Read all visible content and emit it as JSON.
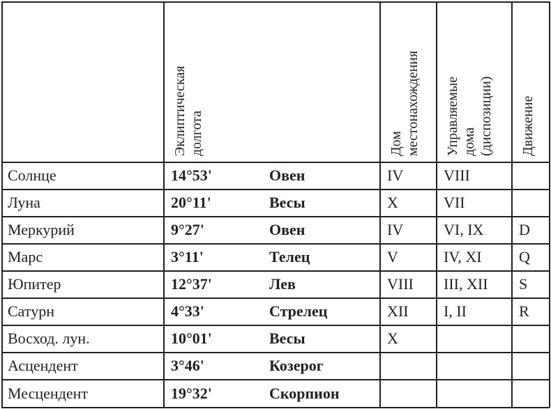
{
  "headers": {
    "longitude": "Эклиптическая\nдолгота",
    "house": "Дом\nместонахождения",
    "ruled": "Управляемые\nдома\n(диспозиции)",
    "motion": "Движение"
  },
  "rows": [
    {
      "planet": "Солнце",
      "degree": "14°53'",
      "sign": "Овен",
      "house": "IV",
      "ruled": "VIII",
      "motion": ""
    },
    {
      "planet": "Луна",
      "degree": "20°11'",
      "sign": "Весы",
      "house": "X",
      "ruled": "VII",
      "motion": ""
    },
    {
      "planet": "Меркурий",
      "degree": "9°27'",
      "sign": "Овен",
      "house": "IV",
      "ruled": "VI, IX",
      "motion": "D"
    },
    {
      "planet": "Марс",
      "degree": "3°11'",
      "sign": "Телец",
      "house": "V",
      "ruled": "IV, XI",
      "motion": "Q"
    },
    {
      "planet": "Юпитер",
      "degree": "12°37'",
      "sign": "Лев",
      "house": "VIII",
      "ruled": "III, XII",
      "motion": "S"
    },
    {
      "planet": "Сатурн",
      "degree": "4°33'",
      "sign": "Стрелец",
      "house": "XII",
      "ruled": "I, II",
      "motion": "R"
    },
    {
      "planet": "Восход. лун.",
      "degree": "10°01'",
      "sign": "Весы",
      "house": "X",
      "ruled": "",
      "motion": ""
    },
    {
      "planet": "Асцендент",
      "degree": "3°46'",
      "sign": "Козерог",
      "house": "",
      "ruled": "",
      "motion": ""
    },
    {
      "planet": "Месцендент",
      "degree": "19°32'",
      "sign": "Скорпион",
      "house": "",
      "ruled": "",
      "motion": ""
    }
  ]
}
